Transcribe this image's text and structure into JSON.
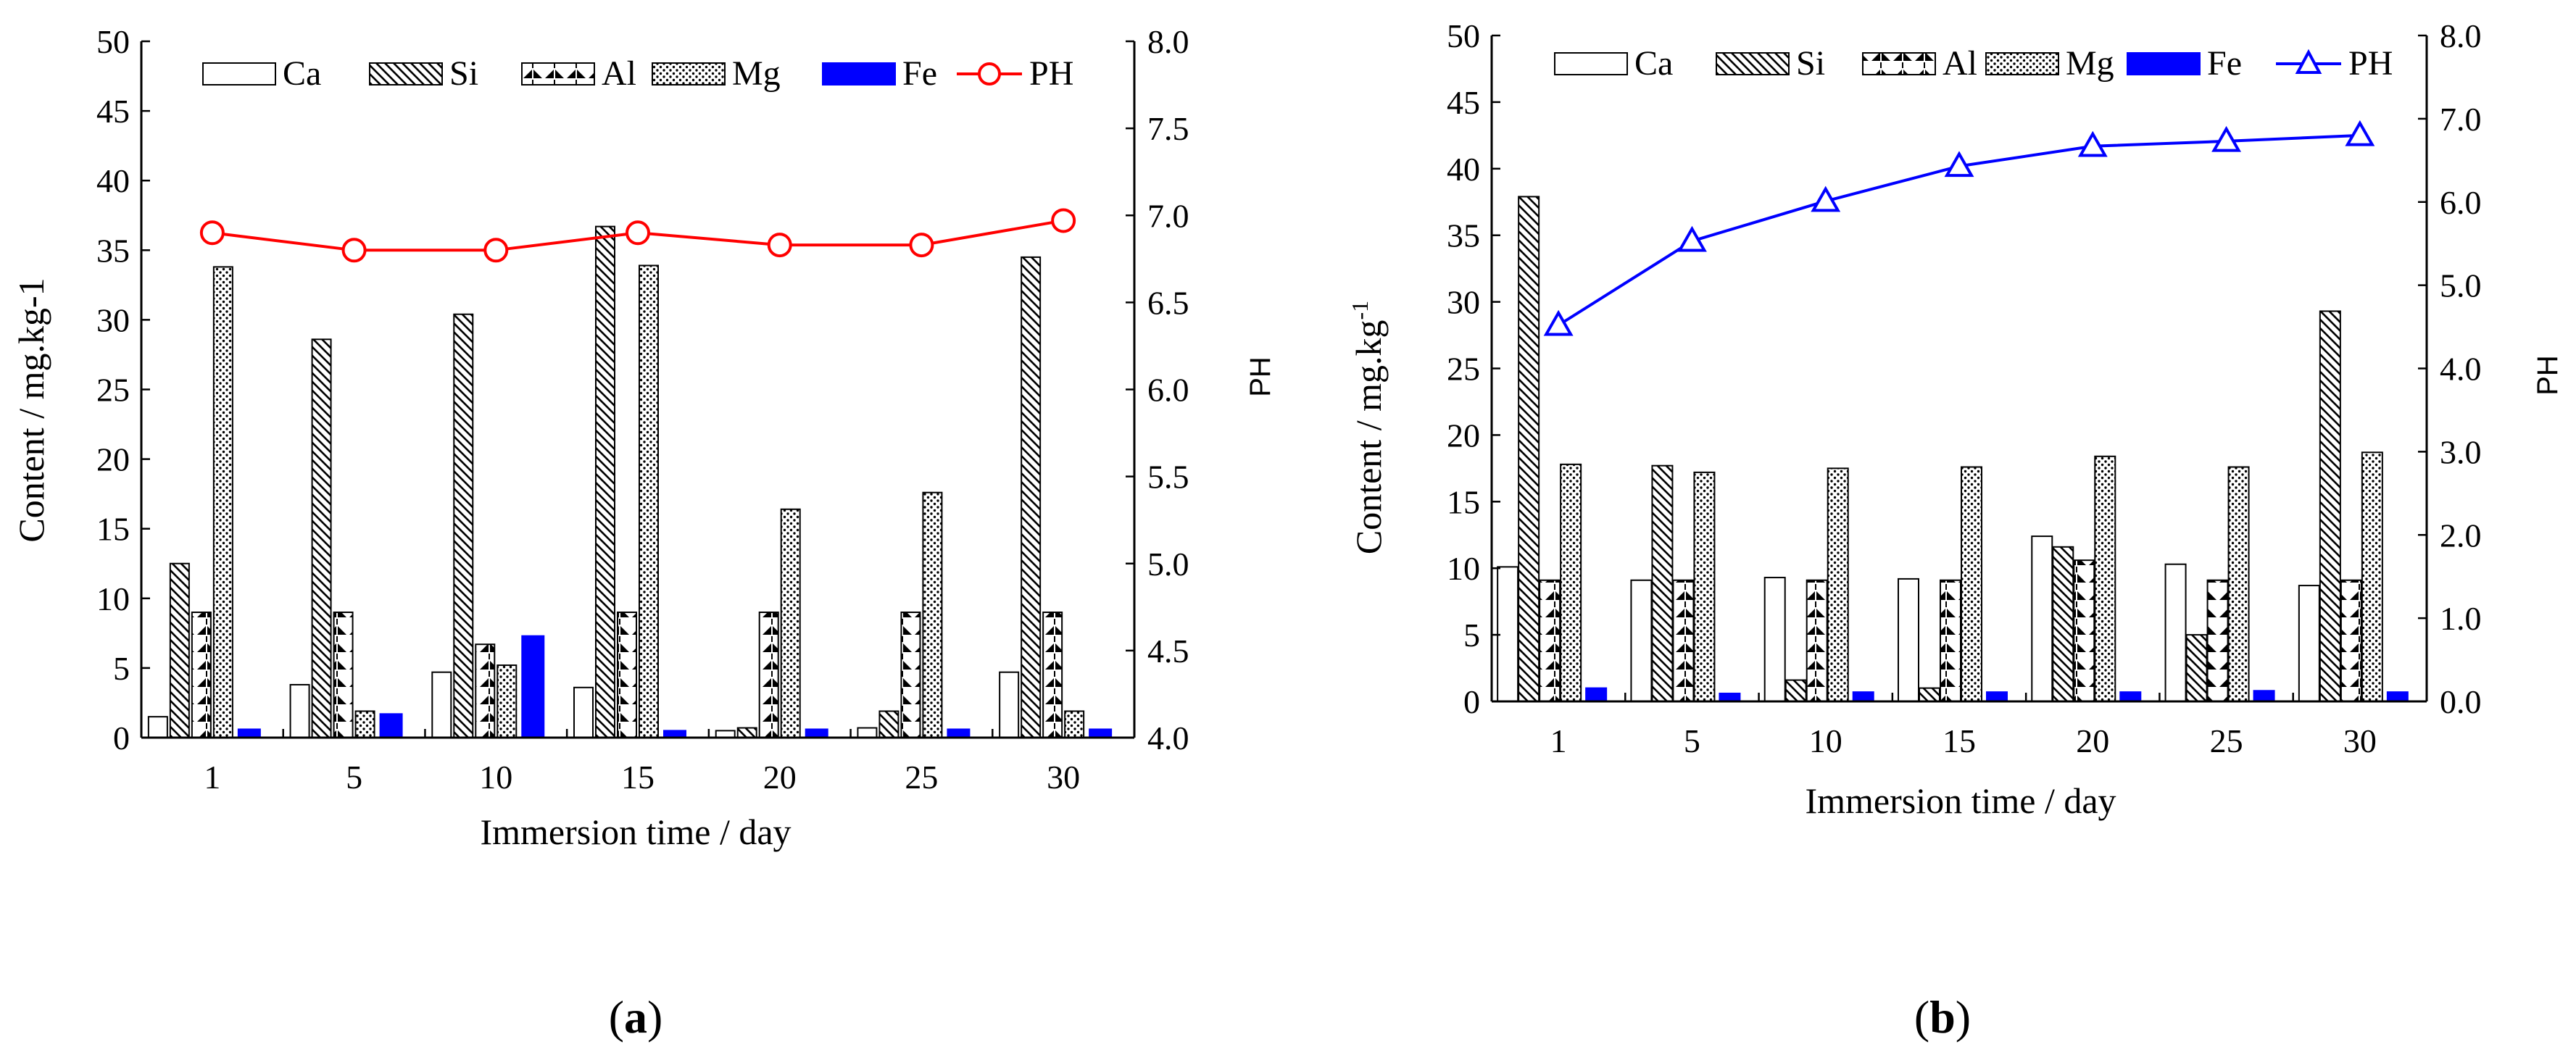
{
  "figure": {
    "colors": {
      "fe": "#0000ff",
      "ph_a": "#ff0000",
      "ph_b": "#0000ff",
      "axis": "#000000"
    }
  },
  "chart_data": [
    {
      "type": "bar",
      "panel_label": "(a)",
      "panel_label_prefix": "(",
      "panel_label_letter": "a",
      "panel_label_suffix": ")",
      "title": "",
      "categories": [
        "1",
        "5",
        "10",
        "15",
        "20",
        "25",
        "30"
      ],
      "xlabel": "Immersion time / day",
      "ylabel": "Content / mg.kg-1",
      "y2label": "PH",
      "ylim": [
        0,
        50
      ],
      "yticks": [
        "0",
        "5",
        "10",
        "15",
        "20",
        "25",
        "30",
        "35",
        "40",
        "45",
        "50"
      ],
      "y2lim": [
        4.0,
        8.0
      ],
      "y2ticks": [
        "4.0",
        "4.5",
        "5.0",
        "5.5",
        "6.0",
        "6.5",
        "7.0",
        "7.5",
        "8.0"
      ],
      "legend_position": "top",
      "series": [
        {
          "name": "Ca",
          "pattern": "empty",
          "values": [
            1.5,
            3.8,
            4.7,
            3.6,
            0.5,
            0.7,
            4.7
          ]
        },
        {
          "name": "Si",
          "pattern": "diagonal",
          "values": [
            12.5,
            28.6,
            30.4,
            36.7,
            0.7,
            1.9,
            34.5
          ]
        },
        {
          "name": "Al",
          "pattern": "triangles",
          "values": [
            9.0,
            9.0,
            6.7,
            9.0,
            9.0,
            9.0,
            9.0
          ]
        },
        {
          "name": "Mg",
          "pattern": "dots",
          "values": [
            33.8,
            1.9,
            5.2,
            33.9,
            16.4,
            17.6,
            1.9
          ]
        },
        {
          "name": "Fe",
          "pattern": "solid-blue",
          "values": [
            0.6,
            1.7,
            7.3,
            0.5,
            0.6,
            0.6,
            0.6
          ]
        }
      ],
      "line_series": {
        "name": "PH",
        "axis": "right",
        "color": "#ff0000",
        "marker": "circle",
        "values": [
          6.9,
          6.8,
          6.8,
          6.9,
          6.83,
          6.83,
          6.97
        ]
      }
    },
    {
      "type": "bar",
      "panel_label": "(b)",
      "panel_label_prefix": "(",
      "panel_label_letter": "b",
      "panel_label_suffix": ")",
      "title": "",
      "categories": [
        "1",
        "5",
        "10",
        "15",
        "20",
        "25",
        "30"
      ],
      "xlabel": "Immersion time / day",
      "ylabel": "Content / mg.kg",
      "ylabel_superscript": "-1",
      "y2label": "PH",
      "ylim": [
        0,
        50
      ],
      "yticks": [
        "0",
        "5",
        "10",
        "15",
        "20",
        "25",
        "30",
        "35",
        "40",
        "45",
        "50"
      ],
      "y2lim": [
        0.0,
        8.0
      ],
      "y2ticks": [
        "0.0",
        "1.0",
        "2.0",
        "3.0",
        "4.0",
        "5.0",
        "6.0",
        "7.0",
        "8.0"
      ],
      "legend_position": "top",
      "series": [
        {
          "name": "Ca",
          "pattern": "empty",
          "values": [
            10.1,
            9.1,
            9.3,
            9.2,
            12.4,
            10.3,
            8.7
          ]
        },
        {
          "name": "Si",
          "pattern": "diagonal",
          "values": [
            37.9,
            17.7,
            1.6,
            1.0,
            11.6,
            5.0,
            29.3
          ]
        },
        {
          "name": "Al",
          "pattern": "triangles",
          "values": [
            9.1,
            9.1,
            9.1,
            9.1,
            10.6,
            9.1,
            9.1
          ]
        },
        {
          "name": "Mg",
          "pattern": "dots",
          "values": [
            17.8,
            17.2,
            17.5,
            17.6,
            18.4,
            17.6,
            18.7
          ]
        },
        {
          "name": "Fe",
          "pattern": "solid-blue",
          "values": [
            1.0,
            0.6,
            0.7,
            0.7,
            0.7,
            0.8,
            0.7
          ]
        }
      ],
      "line_series": {
        "name": "PH",
        "axis": "right",
        "color": "#0000ff",
        "marker": "triangle",
        "values": [
          4.52,
          5.53,
          6.01,
          6.43,
          6.67,
          6.73,
          6.8
        ]
      }
    }
  ]
}
